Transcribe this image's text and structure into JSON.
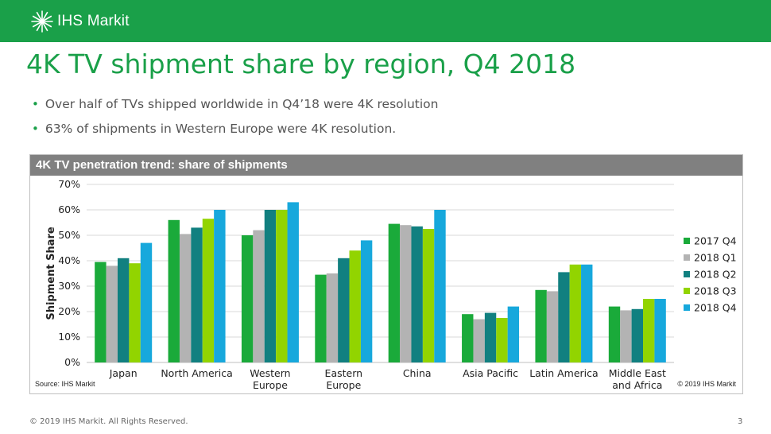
{
  "header": {
    "brand": "IHS Markit",
    "brand_color": "#1aa049"
  },
  "slide": {
    "title": "4K TV shipment share by region, Q4 2018",
    "bullets": [
      "Over half of TVs shipped worldwide in Q4’18 were 4K resolution",
      "63% of shipments in Western Europe were 4K resolution."
    ],
    "bullet_marker": "•",
    "chart_header": "4K TV penetration trend: share of shipments",
    "source": "Source: IHS Markit",
    "chart_copyright": "© 2019 IHS Markit",
    "footer": "© 2019 IHS Markit. All Rights Reserved.",
    "page_number": "3"
  },
  "chart_data": {
    "type": "bar",
    "title": "4K TV penetration trend: share of shipments",
    "xlabel": "",
    "ylabel": "Shipment Share",
    "ylim": [
      0,
      70
    ],
    "yticks": [
      0,
      10,
      20,
      30,
      40,
      50,
      60,
      70
    ],
    "ytick_labels": [
      "0%",
      "10%",
      "20%",
      "30%",
      "40%",
      "50%",
      "60%",
      "70%"
    ],
    "grid": true,
    "legend_position": "right",
    "categories": [
      "Japan",
      "North America",
      "Western Europe",
      "Eastern Europe",
      "China",
      "Asia Pacific",
      "Latin America",
      "Middle East and Africa"
    ],
    "category_label_lines": [
      [
        "Japan"
      ],
      [
        "North America"
      ],
      [
        "Western",
        "Europe"
      ],
      [
        "Eastern",
        "Europe"
      ],
      [
        "China"
      ],
      [
        "Asia Pacific"
      ],
      [
        "Latin America"
      ],
      [
        "Middle East",
        "and Africa"
      ]
    ],
    "series": [
      {
        "name": "2017 Q4",
        "color": "#1aaa3a",
        "values": [
          39.5,
          56,
          50,
          34.5,
          54.5,
          19,
          28.5,
          22
        ]
      },
      {
        "name": "2018 Q1",
        "color": "#b3b3b3",
        "values": [
          38,
          50.5,
          52,
          35,
          54,
          17,
          28,
          20.5
        ]
      },
      {
        "name": "2018 Q2",
        "color": "#118080",
        "values": [
          41,
          53,
          60,
          41,
          53.5,
          19.5,
          35.5,
          21
        ]
      },
      {
        "name": "2018 Q3",
        "color": "#92d400",
        "values": [
          39,
          56.5,
          60,
          44,
          52.5,
          17.5,
          38.5,
          25
        ]
      },
      {
        "name": "2018 Q4",
        "color": "#17a8dc",
        "values": [
          47,
          60,
          63,
          48,
          60,
          22,
          38.5,
          25
        ]
      }
    ]
  }
}
